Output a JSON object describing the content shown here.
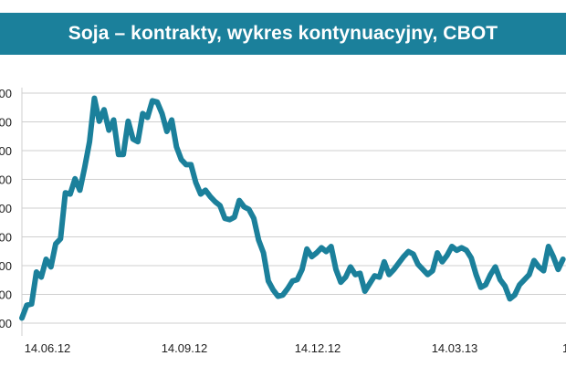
{
  "colors": {
    "accent": "#1b809b",
    "line": "#1b809b",
    "grid": "#cfcfcf"
  },
  "title": "Soja – kontrakty, wykres kontynuacyjny, CBOT",
  "chart_data": {
    "type": "line",
    "title": "Soja – kontrakty, wykres kontynuacyjny, CBOT",
    "xlabel": "",
    "ylabel": "",
    "x_ticks": [
      "14.06.12",
      "14.09.12",
      "14.12.12",
      "14.03.13",
      "1"
    ],
    "y_ticks_visible": [
      "00",
      "00",
      "00",
      "00",
      "00",
      "00",
      "00",
      "00",
      "00"
    ],
    "grid": true,
    "legend": "none",
    "series": [
      {
        "values": [
          [
            0,
            1334
          ],
          [
            2,
            1344
          ],
          [
            4,
            1345
          ],
          [
            6,
            1370
          ],
          [
            8,
            1366
          ],
          [
            10,
            1380
          ],
          [
            12,
            1374
          ],
          [
            14,
            1392
          ],
          [
            16,
            1396
          ],
          [
            18,
            1432
          ],
          [
            20,
            1431
          ],
          [
            22,
            1443
          ],
          [
            24,
            1434
          ],
          [
            26,
            1452
          ],
          [
            28,
            1472
          ],
          [
            30,
            1506
          ],
          [
            32,
            1488
          ],
          [
            34,
            1497
          ],
          [
            36,
            1481
          ],
          [
            38,
            1489
          ],
          [
            40,
            1462
          ],
          [
            42,
            1462
          ],
          [
            44,
            1488
          ],
          [
            46,
            1474
          ],
          [
            48,
            1472
          ],
          [
            50,
            1494
          ],
          [
            52,
            1491
          ],
          [
            54,
            1504
          ],
          [
            56,
            1503
          ],
          [
            58,
            1494
          ],
          [
            60,
            1480
          ],
          [
            62,
            1489
          ],
          [
            64,
            1468
          ],
          [
            66,
            1458
          ],
          [
            68,
            1454
          ],
          [
            70,
            1454
          ],
          [
            72,
            1440
          ],
          [
            74,
            1431
          ],
          [
            76,
            1434
          ],
          [
            78,
            1429
          ],
          [
            80,
            1425
          ],
          [
            82,
            1422
          ],
          [
            84,
            1412
          ],
          [
            86,
            1411
          ],
          [
            88,
            1413
          ],
          [
            90,
            1426
          ],
          [
            92,
            1421
          ],
          [
            94,
            1419
          ],
          [
            96,
            1412
          ],
          [
            98,
            1395
          ],
          [
            100,
            1385
          ],
          [
            102,
            1363
          ],
          [
            104,
            1356
          ],
          [
            106,
            1351
          ],
          [
            108,
            1352
          ],
          [
            110,
            1357
          ],
          [
            112,
            1363
          ],
          [
            114,
            1364
          ],
          [
            116,
            1372
          ],
          [
            118,
            1388
          ],
          [
            120,
            1382
          ],
          [
            122,
            1385
          ],
          [
            124,
            1389
          ],
          [
            126,
            1386
          ],
          [
            128,
            1390
          ],
          [
            130,
            1372
          ],
          [
            132,
            1362
          ],
          [
            134,
            1366
          ],
          [
            136,
            1374
          ],
          [
            138,
            1368
          ],
          [
            140,
            1369
          ],
          [
            142,
            1355
          ],
          [
            144,
            1361
          ],
          [
            146,
            1367
          ],
          [
            148,
            1366
          ],
          [
            150,
            1378
          ],
          [
            152,
            1368
          ],
          [
            154,
            1372
          ],
          [
            156,
            1377
          ],
          [
            158,
            1382
          ],
          [
            160,
            1386
          ],
          [
            162,
            1384
          ],
          [
            164,
            1376
          ],
          [
            166,
            1372
          ],
          [
            168,
            1368
          ],
          [
            170,
            1371
          ],
          [
            172,
            1385
          ],
          [
            174,
            1378
          ],
          [
            176,
            1383
          ],
          [
            178,
            1390
          ],
          [
            180,
            1387
          ],
          [
            182,
            1389
          ],
          [
            184,
            1387
          ],
          [
            186,
            1381
          ],
          [
            188,
            1368
          ],
          [
            190,
            1358
          ],
          [
            192,
            1360
          ],
          [
            194,
            1368
          ],
          [
            196,
            1374
          ],
          [
            198,
            1364
          ],
          [
            200,
            1359
          ],
          [
            202,
            1349
          ],
          [
            204,
            1352
          ],
          [
            206,
            1360
          ],
          [
            208,
            1364
          ],
          [
            210,
            1368
          ],
          [
            212,
            1379
          ],
          [
            214,
            1374
          ],
          [
            216,
            1371
          ],
          [
            218,
            1390
          ],
          [
            220,
            1382
          ],
          [
            222,
            1372
          ],
          [
            224,
            1380
          ]
        ]
      }
    ],
    "x_range": [
      0,
      226
    ],
    "y_range": [
      1330,
      1510
    ]
  }
}
